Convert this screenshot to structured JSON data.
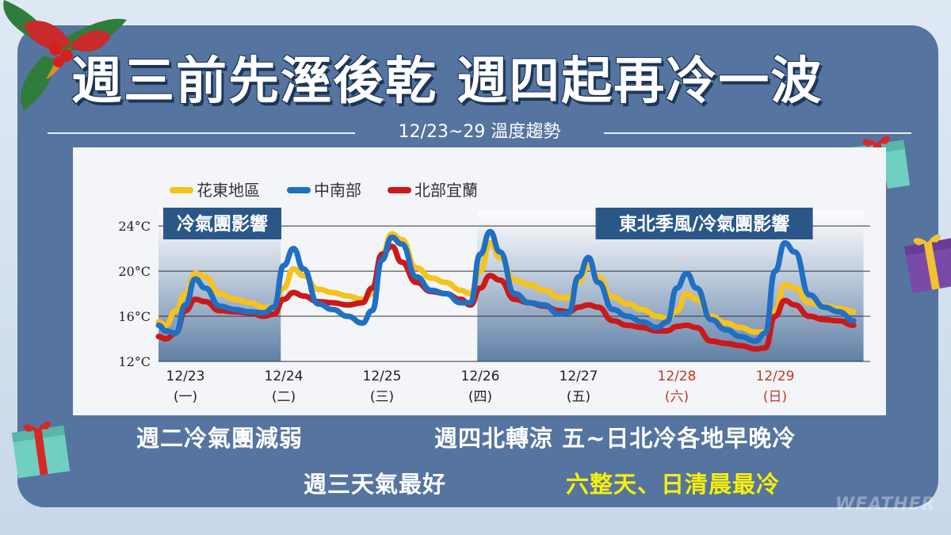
{
  "headline": "週三前先溼後乾  週四起再冷一波",
  "chart_data": {
    "type": "line",
    "title": "12/23~29 溫度趨勢",
    "unit": "°C",
    "ylim": [
      12,
      24.5
    ],
    "yticks": [
      12,
      16,
      20,
      24
    ],
    "ytick_labels": [
      "12°C",
      "16°C",
      "20°C",
      "24°C"
    ],
    "xlim": [
      0,
      6.9
    ],
    "x_ticks": [
      {
        "x": 0,
        "date": "12/23",
        "weekday": "(一)",
        "weekend": false
      },
      {
        "x": 1,
        "date": "12/24",
        "weekday": "(二)",
        "weekend": false
      },
      {
        "x": 2,
        "date": "12/25",
        "weekday": "(三)",
        "weekend": false
      },
      {
        "x": 3,
        "date": "12/26",
        "weekday": "(四)",
        "weekend": false
      },
      {
        "x": 4,
        "date": "12/27",
        "weekday": "(五)",
        "weekend": false
      },
      {
        "x": 5,
        "date": "12/28",
        "weekday": "(六)",
        "weekend": true
      },
      {
        "x": 6,
        "date": "12/29",
        "weekday": "(日)",
        "weekend": true
      }
    ],
    "grid": true,
    "legend": "top-left",
    "series": [
      {
        "name": "花東地區",
        "color": "#f7c21a",
        "x": [
          -0.35,
          -0.2,
          -0.1,
          0.0,
          0.1,
          0.2,
          0.35,
          0.5,
          0.65,
          0.8,
          0.9,
          1.0,
          1.1,
          1.2,
          1.35,
          1.5,
          1.65,
          1.8,
          1.9,
          2.0,
          2.1,
          2.2,
          2.35,
          2.5,
          2.65,
          2.8,
          2.9,
          3.0,
          3.1,
          3.2,
          3.35,
          3.5,
          3.65,
          3.8,
          3.9,
          4.0,
          4.1,
          4.2,
          4.35,
          4.5,
          4.65,
          4.8,
          4.9,
          5.0,
          5.1,
          5.2,
          5.35,
          5.5,
          5.65,
          5.8,
          5.9,
          6.0,
          6.1,
          6.2,
          6.35,
          6.5,
          6.65,
          6.8
        ],
        "values": [
          15.5,
          15.2,
          16.5,
          18.0,
          19.8,
          19.5,
          18.0,
          17.5,
          17.2,
          16.8,
          16.8,
          18.5,
          20.2,
          19.6,
          18.4,
          18.1,
          17.8,
          17.5,
          18.0,
          21.5,
          23.3,
          22.8,
          20.3,
          19.4,
          19.0,
          18.3,
          18.0,
          20.0,
          22.5,
          21.2,
          19.2,
          18.8,
          18.3,
          17.7,
          17.6,
          19.0,
          20.5,
          19.5,
          17.7,
          17.1,
          16.6,
          16.0,
          15.8,
          16.5,
          18.0,
          17.5,
          16.0,
          15.4,
          15.0,
          14.6,
          14.6,
          16.5,
          18.8,
          18.5,
          17.2,
          16.9,
          16.7,
          16.4
        ]
      },
      {
        "name": "中南部",
        "color": "#1f6fc4",
        "x": [
          -0.35,
          -0.2,
          -0.1,
          0.0,
          0.1,
          0.2,
          0.35,
          0.5,
          0.65,
          0.8,
          0.9,
          1.0,
          1.1,
          1.2,
          1.35,
          1.5,
          1.65,
          1.8,
          1.9,
          2.0,
          2.1,
          2.2,
          2.35,
          2.5,
          2.65,
          2.8,
          2.9,
          3.0,
          3.1,
          3.2,
          3.35,
          3.5,
          3.65,
          3.8,
          3.9,
          4.0,
          4.1,
          4.2,
          4.35,
          4.5,
          4.65,
          4.8,
          4.9,
          5.0,
          5.1,
          5.2,
          5.35,
          5.5,
          5.65,
          5.8,
          5.9,
          6.0,
          6.1,
          6.2,
          6.35,
          6.5,
          6.65,
          6.8
        ],
        "values": [
          15.2,
          14.7,
          14.5,
          17.0,
          19.3,
          18.5,
          16.9,
          16.6,
          16.4,
          16.3,
          16.8,
          20.5,
          22.0,
          20.2,
          17.1,
          16.6,
          16.0,
          15.4,
          16.5,
          21.0,
          23.0,
          22.4,
          19.5,
          18.3,
          18.0,
          17.2,
          17.2,
          21.5,
          23.5,
          21.7,
          18.0,
          17.2,
          17.0,
          16.2,
          16.3,
          19.5,
          21.2,
          19.0,
          16.6,
          16.0,
          15.5,
          15.0,
          15.5,
          18.5,
          19.8,
          18.5,
          15.7,
          14.8,
          14.2,
          13.8,
          14.5,
          20.0,
          22.5,
          21.7,
          17.9,
          16.8,
          16.4,
          15.6
        ]
      },
      {
        "name": "北部宜蘭",
        "color": "#cc1818",
        "x": [
          -0.35,
          -0.2,
          -0.1,
          0.0,
          0.1,
          0.2,
          0.35,
          0.5,
          0.65,
          0.8,
          0.9,
          1.0,
          1.1,
          1.2,
          1.35,
          1.5,
          1.65,
          1.8,
          1.9,
          2.0,
          2.1,
          2.2,
          2.35,
          2.5,
          2.65,
          2.8,
          2.9,
          3.0,
          3.1,
          3.2,
          3.35,
          3.5,
          3.65,
          3.8,
          3.9,
          4.0,
          4.1,
          4.2,
          4.35,
          4.5,
          4.65,
          4.8,
          4.9,
          5.0,
          5.1,
          5.2,
          5.35,
          5.5,
          5.65,
          5.8,
          5.9,
          6.0,
          6.1,
          6.2,
          6.35,
          6.5,
          6.65,
          6.8
        ],
        "values": [
          14.2,
          14.0,
          14.5,
          16.5,
          17.5,
          17.3,
          16.5,
          16.4,
          16.3,
          16.0,
          16.2,
          17.5,
          18.1,
          17.8,
          17.3,
          17.2,
          17.0,
          17.2,
          18.5,
          21.5,
          22.2,
          20.8,
          19.0,
          18.2,
          18.0,
          17.5,
          17.0,
          18.5,
          19.6,
          19.2,
          17.5,
          17.2,
          16.9,
          16.5,
          16.4,
          16.8,
          17.0,
          16.8,
          15.6,
          15.2,
          15.0,
          14.7,
          14.7,
          15.1,
          15.2,
          15.0,
          13.8,
          13.6,
          13.4,
          13.1,
          13.2,
          16.0,
          17.4,
          17.0,
          16.0,
          15.7,
          15.6,
          15.2
        ]
      }
    ],
    "shaded_regions": [
      {
        "x_start": -0.35,
        "x_end": 0.97,
        "label": "冷氣團影響"
      },
      {
        "x_start": 2.97,
        "x_end": 6.9,
        "label": "東北季風/冷氣團影響"
      }
    ],
    "colors": {
      "weekend": "#c0392b",
      "region_label_bg": "#2a5788",
      "grid": "#333333"
    }
  },
  "bottom": {
    "line1_left": "週二冷氣團減弱",
    "line1_right": "週四北轉涼  五~日北冷各地早晚冷",
    "line2_left": "週三天氣最好",
    "line2_right": "六整天、日清晨最冷"
  },
  "watermark": "WEATHER"
}
